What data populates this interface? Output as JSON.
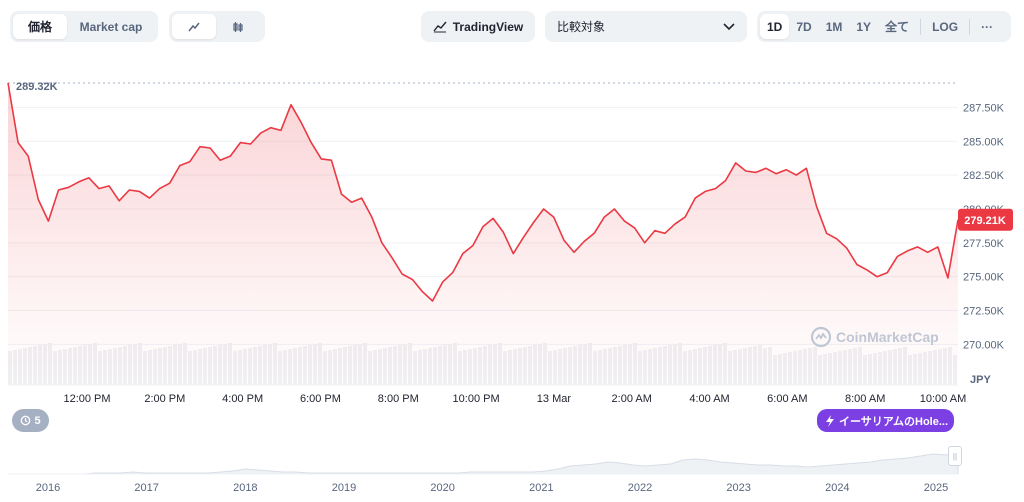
{
  "toolbar": {
    "view_tabs": [
      {
        "label": "価格",
        "active": true
      },
      {
        "label": "Market cap",
        "active": false
      }
    ],
    "chart_types": [
      {
        "icon": "line-chart-icon",
        "active": true
      },
      {
        "icon": "candlestick-icon",
        "active": false
      }
    ],
    "tradingview_label": "TradingView",
    "compare_label": "比較対象",
    "ranges": [
      {
        "label": "1D",
        "active": true
      },
      {
        "label": "7D"
      },
      {
        "label": "1M"
      },
      {
        "label": "1Y"
      },
      {
        "label": "全て"
      }
    ],
    "log_label": "LOG",
    "more_label": "···"
  },
  "colors": {
    "line": "#ea3943",
    "accent_badge": "#ea3943",
    "event": "#7b3fe4"
  },
  "badges": {
    "high_label": "289.32K",
    "current_label": "279.21K",
    "event_count": "5",
    "event_label": "イーサリアムのHole..."
  },
  "watermark": "CoinMarketCap",
  "currency": "JPY",
  "chart_data": {
    "type": "area",
    "x_ticks": [
      "12:00 PM",
      "2:00 PM",
      "4:00 PM",
      "6:00 PM",
      "8:00 PM",
      "10:00 PM",
      "13 Mar",
      "2:00 AM",
      "4:00 AM",
      "6:00 AM",
      "8:00 AM",
      "10:00 AM"
    ],
    "y_ticks": [
      "287.50K",
      "285.00K",
      "282.50K",
      "280.00K",
      "277.50K",
      "275.00K",
      "272.50K",
      "270.00K"
    ],
    "ylim": [
      267000,
      291000
    ],
    "xlim": [
      0,
      94
    ],
    "y": [
      289.3,
      284.9,
      283.9,
      280.7,
      279.1,
      281.4,
      281.6,
      282.0,
      282.3,
      281.5,
      281.7,
      280.6,
      281.4,
      281.3,
      280.8,
      281.5,
      281.9,
      283.2,
      283.5,
      284.6,
      284.5,
      283.6,
      283.9,
      284.9,
      284.8,
      285.6,
      286.0,
      285.8,
      287.7,
      286.4,
      284.9,
      283.7,
      283.6,
      281.1,
      280.5,
      280.8,
      279.4,
      277.5,
      276.4,
      275.2,
      274.8,
      273.9,
      273.2,
      274.6,
      275.3,
      276.7,
      277.3,
      278.7,
      279.3,
      278.3,
      276.7,
      277.9,
      279.0,
      280.0,
      279.4,
      277.7,
      276.8,
      277.6,
      278.2,
      279.4,
      280.0,
      279.1,
      278.6,
      277.5,
      278.4,
      278.2,
      278.9,
      279.4,
      280.8,
      281.3,
      281.5,
      282.1,
      283.4,
      282.8,
      282.7,
      283.0,
      282.6,
      282.9,
      282.5,
      283.0,
      280.2,
      278.2,
      277.8,
      277.1,
      275.9,
      275.5,
      275.0,
      275.3,
      276.5,
      276.9,
      277.2,
      276.8,
      277.2,
      274.9,
      279.2
    ],
    "volume_note": "",
    "nav_years": [
      "2016",
      "2017",
      "2018",
      "2019",
      "2020",
      "2021",
      "2022",
      "2023",
      "2024",
      "2025"
    ]
  }
}
